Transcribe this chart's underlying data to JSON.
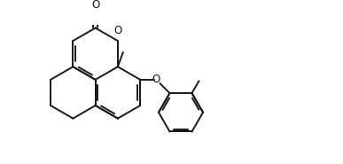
{
  "bg_color": "#ffffff",
  "line_color": "#1a1a1a",
  "line_width": 1.4,
  "figsize": [
    3.87,
    1.85
  ],
  "dpi": 100,
  "xlim": [
    0,
    9.5
  ],
  "ylim": [
    0,
    4.5
  ]
}
